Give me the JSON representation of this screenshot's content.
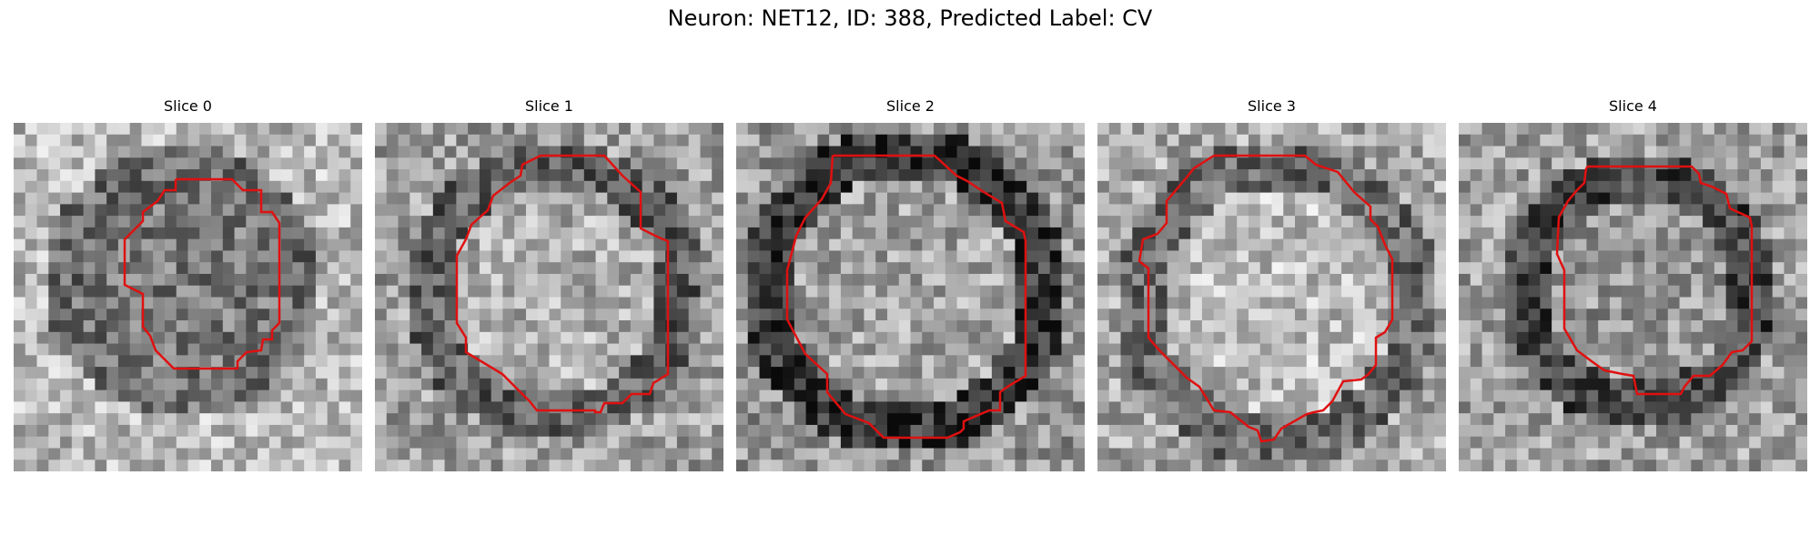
{
  "figure": {
    "title": "Neuron: NET12, ID: 388, Predicted Label: CV"
  },
  "colors": {
    "contour": "#e01010",
    "background": "#ffffff"
  },
  "panels": [
    {
      "title": "Slice 0"
    },
    {
      "title": "Slice 1"
    },
    {
      "title": "Slice 2"
    },
    {
      "title": "Slice 3"
    },
    {
      "title": "Slice 4"
    }
  ]
}
